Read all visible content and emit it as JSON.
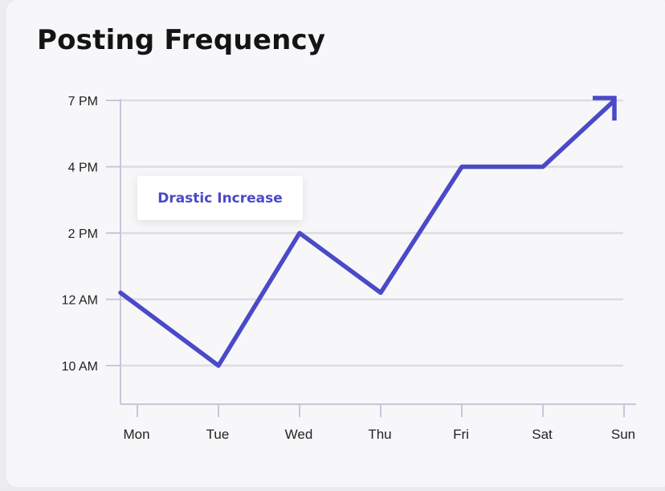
{
  "page": {
    "title": "Posting Frequency"
  },
  "annotation": {
    "text": "Drastic Increase"
  },
  "colors": {
    "line": "#4a4ac8",
    "axis": "#c8c6dc",
    "grid": "#dcdbe6",
    "tick_text": "#222222",
    "annotation_text": "#4a4ac8"
  },
  "chart_data": {
    "type": "line",
    "title": "Posting Frequency",
    "xlabel": "",
    "ylabel": "",
    "categories": [
      "Mon",
      "Tue",
      "Wed",
      "Thu",
      "Fri",
      "Sat",
      "Sun"
    ],
    "y_ticks": [
      "10 AM",
      "12 AM",
      "2 PM",
      "4 PM",
      "7 PM"
    ],
    "values": [
      2.1,
      1.0,
      3.0,
      2.1,
      4.0,
      4.0,
      5.0
    ],
    "ylim": [
      0.4,
      5.0
    ],
    "end_marker": "arrow",
    "grid": true,
    "annotations": [
      "Drastic Increase"
    ]
  }
}
